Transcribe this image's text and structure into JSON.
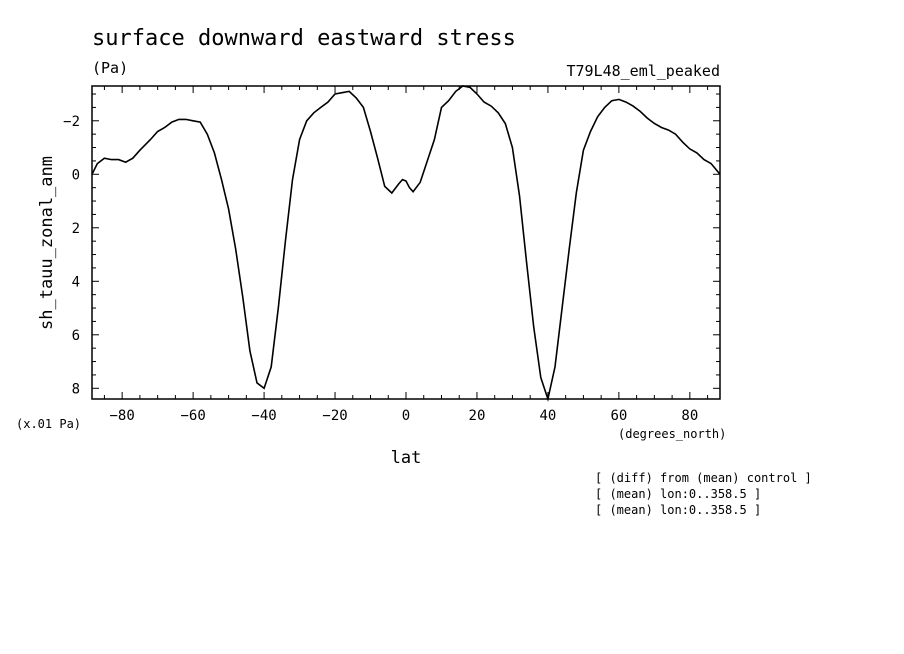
{
  "chart_data": {
    "type": "line",
    "title": "surface downward eastward stress",
    "units": "(Pa)",
    "run_label": "T79L48_eml_peaked",
    "ylabel": "sh_tauu_zonal_anm",
    "xlabel": "lat",
    "x_units": "(degrees_north)",
    "scale_note": "(x.01 Pa)",
    "notes": [
      "[ (diff) from (mean) control ]",
      "[ (mean) lon:0..358.5 ]",
      "[ (mean) lon:0..358.5 ]"
    ],
    "xlim": [
      -88.5,
      88.5
    ],
    "ylim": [
      8.4,
      -3.3
    ],
    "y_inverted": true,
    "x_ticks": [
      -80,
      -60,
      -40,
      -20,
      0,
      20,
      40,
      60,
      80
    ],
    "y_ticks": [
      -2,
      0,
      2,
      4,
      6,
      8
    ],
    "grid": false,
    "series": [
      {
        "x": [
          -88.5,
          -87,
          -85,
          -83,
          -81,
          -79,
          -77,
          -75,
          -72,
          -70,
          -68,
          -66,
          -64,
          -62,
          -60,
          -58,
          -56,
          -54,
          -52,
          -50,
          -48,
          -46,
          -44,
          -42,
          -40,
          -38,
          -36,
          -34,
          -32,
          -30,
          -28,
          -26,
          -24,
          -22,
          -20,
          -18,
          -16,
          -14,
          -12,
          -10,
          -8,
          -6,
          -4,
          -2,
          -1,
          0,
          1,
          2,
          4,
          6,
          8,
          10,
          12,
          14,
          16,
          18,
          20,
          22,
          24,
          26,
          28,
          30,
          32,
          34,
          36,
          38,
          40,
          42,
          44,
          46,
          48,
          50,
          52,
          54,
          56,
          58,
          60,
          62,
          64,
          66,
          68,
          70,
          72,
          74,
          76,
          78,
          80,
          82,
          84,
          86,
          88.5
        ],
        "y": [
          0,
          -0.4,
          -0.6,
          -0.55,
          -0.55,
          -0.45,
          -0.6,
          -0.9,
          -1.3,
          -1.6,
          -1.75,
          -1.95,
          -2.05,
          -2.05,
          -2.0,
          -1.95,
          -1.5,
          -0.8,
          0.2,
          1.3,
          2.8,
          4.6,
          6.6,
          7.8,
          8.0,
          7.2,
          5.0,
          2.5,
          0.2,
          -1.3,
          -2.0,
          -2.3,
          -2.5,
          -2.7,
          -3.0,
          -3.05,
          -3.1,
          -2.85,
          -2.5,
          -1.6,
          -0.6,
          0.45,
          0.7,
          0.35,
          0.2,
          0.25,
          0.5,
          0.65,
          0.3,
          -0.5,
          -1.3,
          -2.5,
          -2.75,
          -3.1,
          -3.3,
          -3.25,
          -3.0,
          -2.7,
          -2.55,
          -2.3,
          -1.9,
          -1.0,
          0.8,
          3.3,
          5.7,
          7.6,
          8.4,
          7.2,
          5.0,
          2.8,
          0.7,
          -0.9,
          -1.6,
          -2.15,
          -2.5,
          -2.75,
          -2.8,
          -2.7,
          -2.55,
          -2.35,
          -2.1,
          -1.9,
          -1.75,
          -1.65,
          -1.5,
          -1.2,
          -0.95,
          -0.8,
          -0.55,
          -0.4,
          0
        ]
      }
    ]
  }
}
